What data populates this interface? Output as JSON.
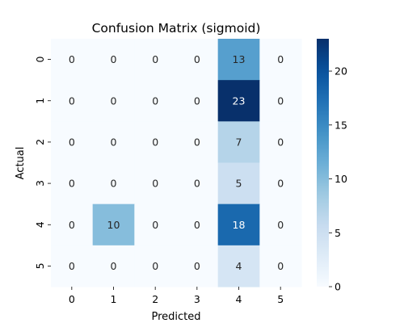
{
  "chart_data": {
    "type": "heatmap",
    "title": "Confusion Matrix (sigmoid)",
    "xlabel": "Predicted",
    "ylabel": "Actual",
    "x_labels": [
      "0",
      "1",
      "2",
      "3",
      "4",
      "5"
    ],
    "y_labels": [
      "0",
      "1",
      "2",
      "3",
      "4",
      "5"
    ],
    "values": [
      [
        0,
        0,
        0,
        0,
        13,
        0
      ],
      [
        0,
        0,
        0,
        0,
        23,
        0
      ],
      [
        0,
        0,
        0,
        0,
        7,
        0
      ],
      [
        0,
        0,
        0,
        0,
        5,
        0
      ],
      [
        0,
        10,
        0,
        0,
        18,
        0
      ],
      [
        0,
        0,
        0,
        0,
        4,
        0
      ]
    ],
    "colormap": "Blues",
    "vmin": 0,
    "vmax": 23,
    "colorbar_ticks": [
      0,
      5,
      10,
      15,
      20
    ],
    "annotations": true
  }
}
